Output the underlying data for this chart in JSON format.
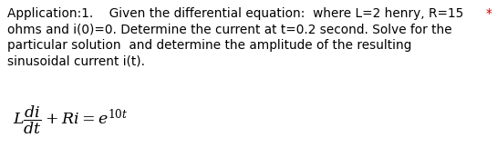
{
  "background_color": "#ffffff",
  "text_color": "#000000",
  "asterisk_color": "#cc0000",
  "line1": "Application:1.    Given the differential equation:  where L=2 henry, R=15",
  "line2": "ohms and i(0)=0. Determine the current at t=0.2 second. Solve for the",
  "line3": "particular solution  and determine the amplitude of the resulting",
  "line4": "sinusoidal current i(t).",
  "asterisk": "*",
  "main_font_size": 9.8,
  "equation_font_size": 12.5,
  "fig_width": 5.45,
  "fig_height": 1.84,
  "dpi": 100
}
